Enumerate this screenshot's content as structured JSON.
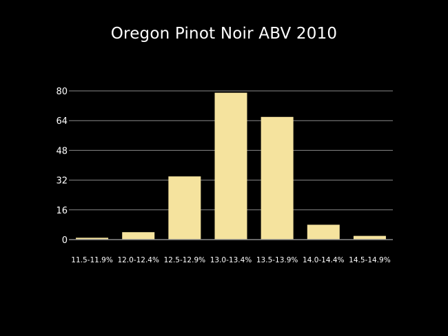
{
  "colors": {
    "background": "#000000",
    "bar_fill": "#f5e39e",
    "grid": "#8a8a8a",
    "text": "#ffffff"
  },
  "chart_data": {
    "type": "bar",
    "title": "Oregon Pinot Noir ABV 2010",
    "xlabel": "",
    "ylabel": "",
    "categories": [
      "11.5-11.9%",
      "12.0-12.4%",
      "12.5-12.9%",
      "13.0-13.4%",
      "13.5-13.9%",
      "14.0-14.4%",
      "14.5-14.9%"
    ],
    "values": [
      1,
      4,
      34,
      79,
      66,
      8,
      2
    ],
    "ylim": [
      0,
      80
    ],
    "yticks": [
      "0",
      "16",
      "32",
      "48",
      "64",
      "80"
    ],
    "grid": true,
    "legend": "none"
  }
}
